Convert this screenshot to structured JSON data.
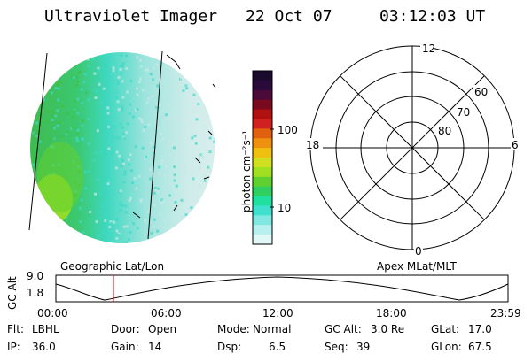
{
  "header": {
    "instrument": "Ultraviolet Imager",
    "date": "22 Oct 07",
    "time": "03:12:03 UT"
  },
  "colorbar": {
    "unit_label": "photon cm⁻²s⁻¹",
    "ticks": [
      "100",
      "10"
    ],
    "colors": [
      "#1a0a2e",
      "#2a0a3a",
      "#4a0a3a",
      "#7a0a20",
      "#b01010",
      "#d02020",
      "#e06010",
      "#f09010",
      "#f0c010",
      "#d0e020",
      "#a0e020",
      "#60d030",
      "#30d060",
      "#20e0a0",
      "#40e0d0",
      "#80e8e0",
      "#b8f0f0",
      "#e0f8f8"
    ]
  },
  "aurora_image": {
    "colors": {
      "dim": "#c8e8e4",
      "mid": "#40d8c8",
      "bright": "#40c040",
      "peak": "#a0e020"
    }
  },
  "polar_plot": {
    "clock_labels": [
      "12",
      "18",
      "6",
      "0"
    ],
    "lat_labels": [
      "60",
      "70",
      "80"
    ]
  },
  "timeline": {
    "left_label": "Geographic Lat/Lon",
    "right_label": "Apex MLat/MLT",
    "y_axis_label": "GC Alt",
    "y_ticks": [
      "9.0",
      "1.8"
    ],
    "x_ticks": [
      "00:00",
      "06:00",
      "12:00",
      "18:00",
      "23:59"
    ],
    "marker_color": "#e00000"
  },
  "status": {
    "row1": [
      {
        "label": "Flt:",
        "value": "LBHL"
      },
      {
        "label": "Door:",
        "value": "Open"
      },
      {
        "label": "Mode:",
        "value": "Normal"
      },
      {
        "label": "GC Alt:",
        "value": "3.0 Re"
      },
      {
        "label": "GLat:",
        "value": "17.0"
      }
    ],
    "row2": [
      {
        "label": "IP:",
        "value": "36.0"
      },
      {
        "label": "Gain:",
        "value": "14"
      },
      {
        "label": "Dsp:",
        "value": "6.5"
      },
      {
        "label": "Seq:",
        "value": "39"
      },
      {
        "label": "GLon:",
        "value": "67.5"
      }
    ]
  }
}
